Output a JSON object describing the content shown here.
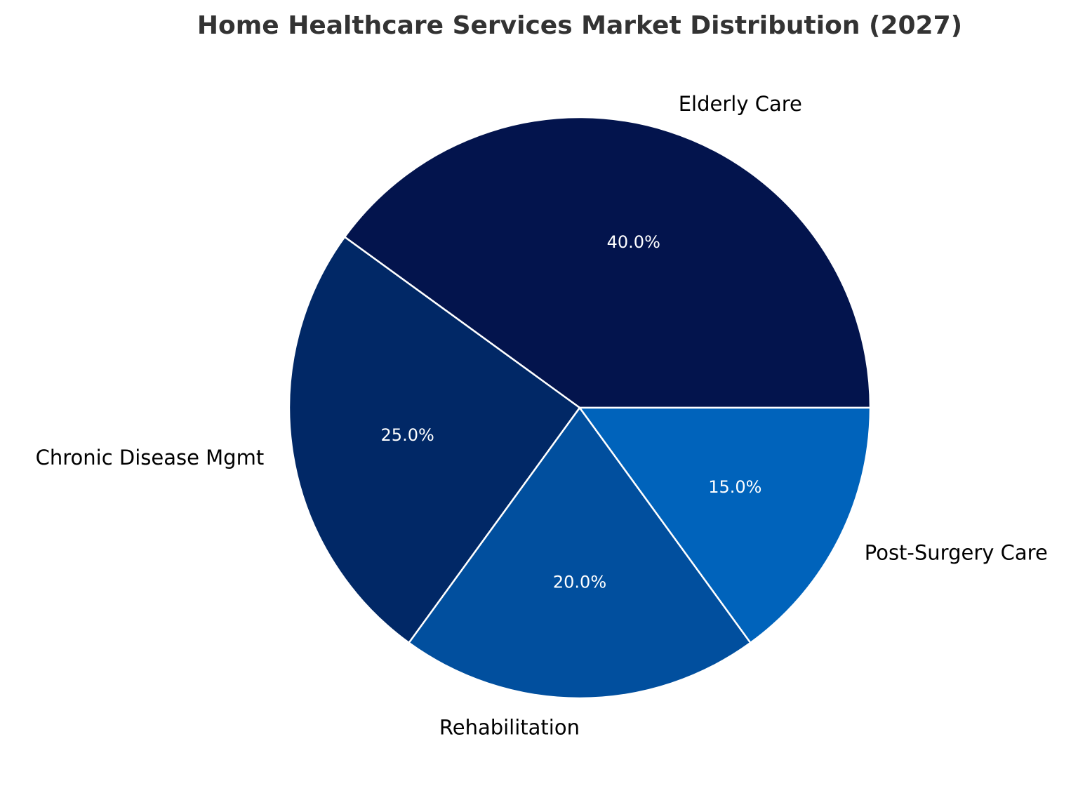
{
  "chart_data": {
    "type": "pie",
    "title": "Home Healthcare Services Market Distribution (2027)",
    "categories": [
      "Elderly Care",
      "Chronic Disease Mgmt",
      "Rehabilitation",
      "Post-Surgery Care"
    ],
    "values": [
      40.0,
      25.0,
      20.0,
      15.0
    ],
    "percent_labels": [
      "40.0%",
      "25.0%",
      "20.0%",
      "15.0%"
    ],
    "colors": [
      "#03144d",
      "#012866",
      "#014f9e",
      "#0063bb"
    ],
    "start_angle_deg": 0,
    "direction": "counterclockwise",
    "legend": "none"
  }
}
